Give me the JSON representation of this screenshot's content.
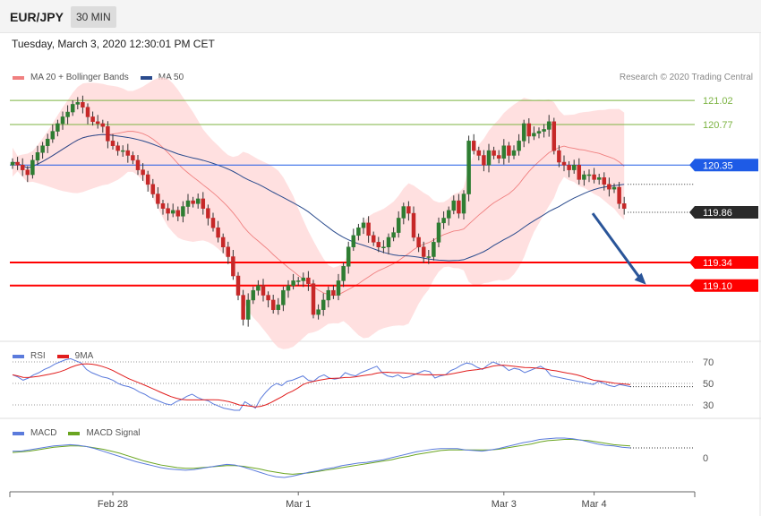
{
  "header": {
    "symbol": "EUR/JPY",
    "timeframe": "30 MIN",
    "datetime": "Tuesday, March 3, 2020 12:30:01 PM CET"
  },
  "copyright": "Research © 2020 Trading Central",
  "colors": {
    "up": "#2e7d32",
    "down": "#c62828",
    "ma20": "#f08080",
    "band_fill": "#ffd6d6",
    "ma50": "#2a4b8d",
    "support": "#ff0000",
    "resistance": "#7cb342",
    "rsi": "#5b7bdc",
    "rsi_ma": "#e11d1d",
    "macd": "#5b7bdc",
    "macd_signal": "#6aa520",
    "current": "#2a2a2a",
    "ma50_label": "#1e5be6",
    "arrow": "#2a5599"
  },
  "chart_data": [
    {
      "type": "candlestick",
      "legend": [
        {
          "name": "MA 20 + Bollinger Bands",
          "color": "#f08080"
        },
        {
          "name": "MA 50",
          "color": "#2a4b8d"
        }
      ],
      "ylim": [
        118.55,
        121.3
      ],
      "x_ticks": [
        {
          "label": "Feb 28",
          "index": 20
        },
        {
          "label": "Mar 1",
          "index": 57
        },
        {
          "label": "Mar 3",
          "index": 98
        },
        {
          "label": "Mar 4",
          "index": 116
        }
      ],
      "levels": [
        {
          "value": 121.02,
          "label": "121.02",
          "kind": "resistance"
        },
        {
          "value": 120.77,
          "label": "120.77",
          "kind": "resistance"
        },
        {
          "value": 120.35,
          "label": "120.35",
          "kind": "ma50"
        },
        {
          "value": 119.86,
          "label": "119.86",
          "kind": "current"
        },
        {
          "value": 119.34,
          "label": "119.34",
          "kind": "support"
        },
        {
          "value": 119.1,
          "label": "119.10",
          "kind": "support"
        }
      ],
      "forecast_arrow": {
        "from": {
          "index": 115,
          "value": 119.85
        },
        "to": {
          "index": 126,
          "value": 119.13
        }
      },
      "closes": [
        120.38,
        120.35,
        120.3,
        120.25,
        120.4,
        120.48,
        120.55,
        120.62,
        120.7,
        120.78,
        120.85,
        120.9,
        120.98,
        121.0,
        120.95,
        120.85,
        120.8,
        120.78,
        120.75,
        120.6,
        120.55,
        120.5,
        120.5,
        120.45,
        120.4,
        120.3,
        120.25,
        120.15,
        120.05,
        119.95,
        119.9,
        119.85,
        119.88,
        119.82,
        119.92,
        119.98,
        119.95,
        120.0,
        119.9,
        119.8,
        119.7,
        119.6,
        119.5,
        119.4,
        119.2,
        119.0,
        118.75,
        118.95,
        119.05,
        119.1,
        119.0,
        118.95,
        118.85,
        118.9,
        119.05,
        119.1,
        119.15,
        119.15,
        119.18,
        119.12,
        118.8,
        118.85,
        118.95,
        119.05,
        119.0,
        119.15,
        119.3,
        119.5,
        119.62,
        119.7,
        119.75,
        119.62,
        119.55,
        119.5,
        119.5,
        119.6,
        119.65,
        119.8,
        119.92,
        119.85,
        119.6,
        119.5,
        119.4,
        119.4,
        119.55,
        119.75,
        119.8,
        119.88,
        119.98,
        119.85,
        120.05,
        120.6,
        120.5,
        120.45,
        120.35,
        120.5,
        120.45,
        120.42,
        120.55,
        120.45,
        120.5,
        120.6,
        120.78,
        120.65,
        120.68,
        120.7,
        120.72,
        120.8,
        120.5,
        120.38,
        120.35,
        120.3,
        120.35,
        120.2,
        120.25,
        120.25,
        120.2,
        120.22,
        120.15,
        120.1,
        120.12,
        119.95,
        119.9
      ]
    },
    {
      "type": "line",
      "legend": [
        {
          "name": "RSI",
          "color": "#5b7bdc"
        },
        {
          "name": "9MA",
          "color": "#e11d1d"
        }
      ],
      "ylim": [
        20,
        80
      ],
      "yticks": [
        70,
        50,
        30
      ],
      "rsi": [
        58,
        56,
        53,
        55,
        58,
        60,
        63,
        65,
        68,
        70,
        72,
        73,
        71,
        69,
        63,
        60,
        58,
        56,
        55,
        53,
        50,
        48,
        47,
        45,
        42,
        40,
        37,
        35,
        33,
        31,
        30,
        33,
        35,
        38,
        40,
        37,
        35,
        34,
        31,
        29,
        27,
        26,
        25,
        25,
        33,
        30,
        27,
        36,
        42,
        47,
        50,
        48,
        52,
        53,
        55,
        57,
        53,
        52,
        56,
        58,
        55,
        54,
        55,
        60,
        58,
        57,
        60,
        62,
        64,
        66,
        60,
        57,
        56,
        58,
        55,
        56,
        58,
        60,
        62,
        61,
        55,
        57,
        58,
        62,
        64,
        67,
        69,
        68,
        65,
        63,
        67,
        70,
        68,
        66,
        62,
        64,
        63,
        60,
        62,
        64,
        66,
        63,
        57,
        56,
        55,
        54,
        53,
        52,
        51,
        50,
        49,
        52,
        50,
        48,
        47,
        49,
        48,
        47
      ]
    },
    {
      "type": "line",
      "legend": [
        {
          "name": "MACD",
          "color": "#5b7bdc"
        },
        {
          "name": "MACD Signal",
          "color": "#6aa520"
        }
      ],
      "ylim": [
        -0.45,
        0.45
      ],
      "yticks": [
        0
      ],
      "macd": [
        0.1,
        0.1,
        0.12,
        0.14,
        0.16,
        0.18,
        0.19,
        0.2,
        0.19,
        0.17,
        0.14,
        0.1,
        0.06,
        0.02,
        -0.02,
        -0.06,
        -0.09,
        -0.12,
        -0.15,
        -0.17,
        -0.18,
        -0.19,
        -0.18,
        -0.16,
        -0.14,
        -0.12,
        -0.1,
        -0.11,
        -0.14,
        -0.18,
        -0.22,
        -0.26,
        -0.29,
        -0.3,
        -0.28,
        -0.25,
        -0.22,
        -0.2,
        -0.17,
        -0.15,
        -0.12,
        -0.1,
        -0.08,
        -0.07,
        -0.05,
        -0.03,
        0.0,
        0.03,
        0.06,
        0.09,
        0.11,
        0.13,
        0.14,
        0.14,
        0.14,
        0.12,
        0.11,
        0.1,
        0.12,
        0.14,
        0.17,
        0.2,
        0.23,
        0.25,
        0.28,
        0.29,
        0.3,
        0.3,
        0.29,
        0.27,
        0.24,
        0.21,
        0.19,
        0.18,
        0.16,
        0.15
      ],
      "signal": [
        0.08,
        0.09,
        0.1,
        0.12,
        0.14,
        0.16,
        0.17,
        0.18,
        0.18,
        0.17,
        0.15,
        0.13,
        0.1,
        0.07,
        0.03,
        -0.01,
        -0.05,
        -0.08,
        -0.11,
        -0.13,
        -0.15,
        -0.16,
        -0.16,
        -0.15,
        -0.14,
        -0.13,
        -0.12,
        -0.12,
        -0.13,
        -0.15,
        -0.17,
        -0.2,
        -0.22,
        -0.24,
        -0.25,
        -0.24,
        -0.23,
        -0.21,
        -0.19,
        -0.17,
        -0.15,
        -0.13,
        -0.11,
        -0.09,
        -0.07,
        -0.05,
        -0.03,
        0.0,
        0.02,
        0.05,
        0.07,
        0.09,
        0.11,
        0.12,
        0.12,
        0.12,
        0.12,
        0.12,
        0.12,
        0.13,
        0.15,
        0.17,
        0.19,
        0.21,
        0.24,
        0.26,
        0.27,
        0.28,
        0.28,
        0.27,
        0.26,
        0.24,
        0.22,
        0.2,
        0.19,
        0.18
      ]
    }
  ]
}
